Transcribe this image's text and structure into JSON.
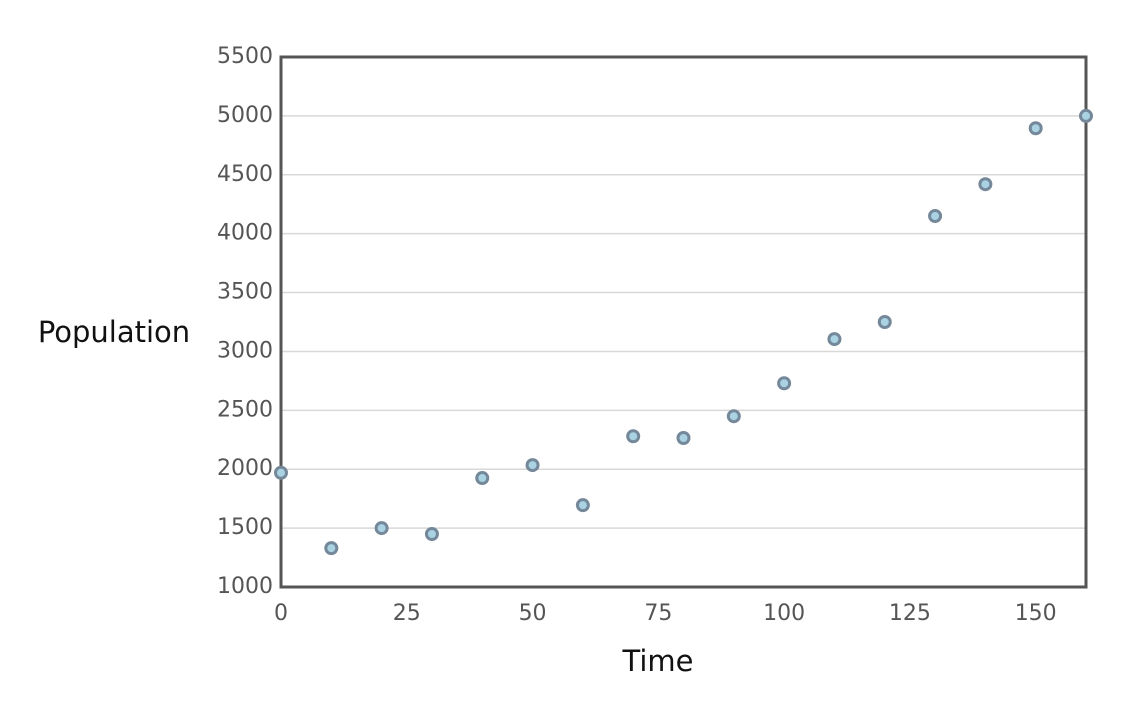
{
  "chart_data": {
    "type": "scatter",
    "x_label": "Time",
    "y_label": "Population",
    "x": [
      0,
      10,
      20,
      30,
      40,
      50,
      60,
      70,
      80,
      90,
      100,
      110,
      120,
      130,
      140,
      150,
      160
    ],
    "series": [
      {
        "name": "Population",
        "color": "#a9d2e2",
        "values": [
          1970,
          1330,
          1500,
          1450,
          1925,
          2035,
          1695,
          2280,
          2265,
          2450,
          2730,
          3105,
          3250,
          4150,
          4420,
          4895,
          5000
        ]
      }
    ],
    "xlim": [
      0,
      160
    ],
    "xticks": [
      0,
      25,
      50,
      75,
      100,
      125,
      150
    ],
    "ylim": [
      1000,
      5500
    ],
    "yticks": [
      1000,
      1500,
      2000,
      2500,
      3000,
      3500,
      4000,
      4500,
      5000,
      5500
    ],
    "grid": true
  }
}
